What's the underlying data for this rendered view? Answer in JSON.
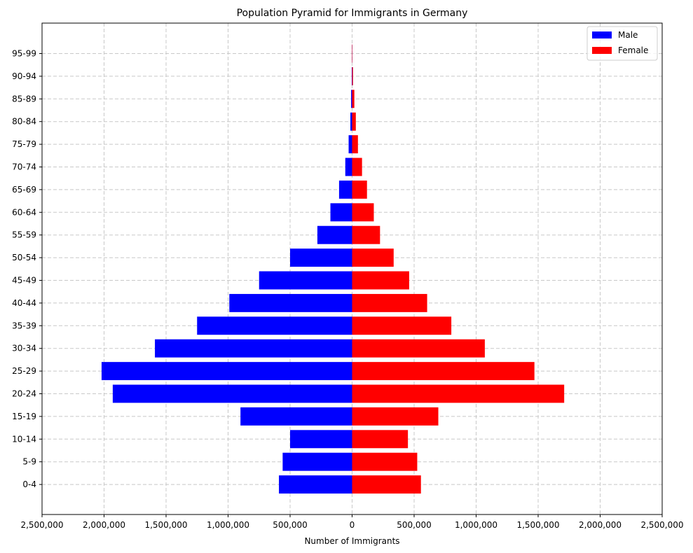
{
  "chart_data": {
    "type": "bar",
    "orientation": "horizontal",
    "title": "Population Pyramid for Immigrants in Germany",
    "xlabel": "Number of Immigrants",
    "ylabel": "",
    "xlim": [
      -2500000,
      2500000
    ],
    "x_ticks": [
      -2500000,
      -2000000,
      -1500000,
      -1000000,
      -500000,
      0,
      500000,
      1000000,
      1500000,
      2000000,
      2500000
    ],
    "x_tick_labels": [
      "2,500,000",
      "2,000,000",
      "1,500,000",
      "1,000,000",
      "500,000",
      "0",
      "500,000",
      "1,000,000",
      "1,500,000",
      "2,000,000",
      "2,500,000"
    ],
    "grid": true,
    "legend_position": "top-right",
    "categories": [
      "0-4",
      "5-9",
      "10-14",
      "15-19",
      "20-24",
      "25-29",
      "30-34",
      "35-39",
      "40-44",
      "45-49",
      "50-54",
      "55-59",
      "60-64",
      "65-69",
      "70-74",
      "75-79",
      "80-84",
      "85-89",
      "90-94",
      "95-99"
    ],
    "series": [
      {
        "name": "Male",
        "color": "#0000ff",
        "values": [
          590000,
          560000,
          500000,
          900000,
          1930000,
          2020000,
          1590000,
          1250000,
          990000,
          750000,
          500000,
          280000,
          175000,
          105000,
          55000,
          28000,
          14000,
          8000,
          3000,
          1000
        ]
      },
      {
        "name": "Female",
        "color": "#ff0000",
        "values": [
          555000,
          525000,
          450000,
          695000,
          1710000,
          1470000,
          1070000,
          800000,
          605000,
          460000,
          335000,
          225000,
          175000,
          120000,
          80000,
          47000,
          30000,
          18000,
          7000,
          2000
        ]
      }
    ]
  }
}
